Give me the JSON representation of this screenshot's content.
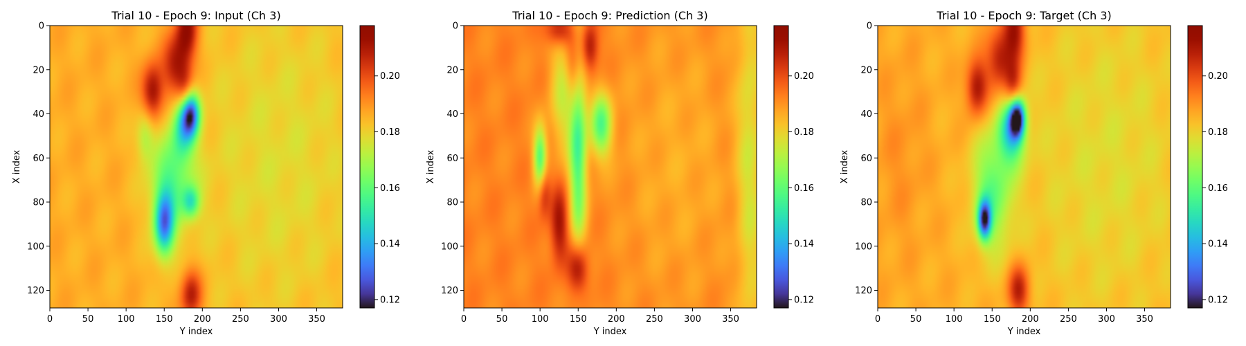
{
  "chart_data": [
    {
      "type": "heatmap",
      "title": "Trial 10 - Epoch 9: Input (Ch 3)",
      "xlabel": "Y index",
      "ylabel": "X index",
      "xlim": [
        0,
        384
      ],
      "ylim": [
        128,
        0
      ],
      "xticks": [
        "0",
        "50",
        "100",
        "150",
        "200",
        "250",
        "300",
        "350"
      ],
      "yticks": [
        "0",
        "20",
        "40",
        "60",
        "80",
        "100",
        "120"
      ],
      "colorbar": {
        "range": [
          0.117,
          0.218
        ],
        "ticks": [
          "0.12",
          "0.14",
          "0.16",
          "0.18",
          "0.20"
        ],
        "colormap": "turbo"
      },
      "background_value": 0.186,
      "features": [
        {
          "x": 180,
          "y": 2,
          "value": 0.214,
          "sx": 10,
          "sy": 10
        },
        {
          "x": 135,
          "y": 30,
          "value": 0.214,
          "sx": 10,
          "sy": 9
        },
        {
          "x": 165,
          "y": 18,
          "value": 0.21,
          "sx": 12,
          "sy": 10
        },
        {
          "x": 178,
          "y": 30,
          "value": 0.205,
          "sx": 8,
          "sy": 8
        },
        {
          "x": 185,
          "y": 40,
          "value": 0.135,
          "sx": 8,
          "sy": 7
        },
        {
          "x": 175,
          "y": 45,
          "value": 0.155,
          "sx": 10,
          "sy": 10
        },
        {
          "x": 150,
          "y": 90,
          "value": 0.138,
          "sx": 9,
          "sy": 10
        },
        {
          "x": 160,
          "y": 70,
          "value": 0.162,
          "sx": 20,
          "sy": 15
        },
        {
          "x": 125,
          "y": 50,
          "value": 0.172,
          "sx": 8,
          "sy": 8
        },
        {
          "x": 185,
          "y": 80,
          "value": 0.16,
          "sx": 8,
          "sy": 5
        },
        {
          "x": 185,
          "y": 122,
          "value": 0.21,
          "sx": 10,
          "sy": 8
        },
        {
          "x": 300,
          "y": 60,
          "value": 0.178,
          "sx": 90,
          "sy": 60
        }
      ]
    },
    {
      "type": "heatmap",
      "title": "Trial 10 - Epoch 9: Prediction (Ch 3)",
      "xlabel": "Y index",
      "ylabel": "X index",
      "xlim": [
        0,
        384
      ],
      "ylim": [
        128,
        0
      ],
      "xticks": [
        "0",
        "50",
        "100",
        "150",
        "200",
        "250",
        "300",
        "350"
      ],
      "yticks": [
        "0",
        "20",
        "40",
        "60",
        "80",
        "100",
        "120"
      ],
      "colorbar": {
        "range": [
          0.117,
          0.218
        ],
        "ticks": [
          "0.12",
          "0.14",
          "0.16",
          "0.18",
          "0.20"
        ],
        "colormap": "turbo"
      },
      "background_value": 0.192,
      "features": [
        {
          "x": 150,
          "y": 110,
          "value": 0.218,
          "sx": 9,
          "sy": 8
        },
        {
          "x": 125,
          "y": 90,
          "value": 0.212,
          "sx": 8,
          "sy": 12
        },
        {
          "x": 105,
          "y": 75,
          "value": 0.208,
          "sx": 6,
          "sy": 8
        },
        {
          "x": 100,
          "y": 60,
          "value": 0.158,
          "sx": 6,
          "sy": 10
        },
        {
          "x": 150,
          "y": 55,
          "value": 0.158,
          "sx": 8,
          "sy": 35
        },
        {
          "x": 180,
          "y": 45,
          "value": 0.16,
          "sx": 10,
          "sy": 10
        },
        {
          "x": 130,
          "y": 30,
          "value": 0.175,
          "sx": 12,
          "sy": 20
        },
        {
          "x": 145,
          "y": 20,
          "value": 0.212,
          "sx": 8,
          "sy": 12
        },
        {
          "x": 165,
          "y": 10,
          "value": 0.212,
          "sx": 8,
          "sy": 8
        },
        {
          "x": 125,
          "y": 2,
          "value": 0.212,
          "sx": 12,
          "sy": 5
        },
        {
          "x": 375,
          "y": 60,
          "value": 0.178,
          "sx": 12,
          "sy": 80
        },
        {
          "x": 280,
          "y": 60,
          "value": 0.186,
          "sx": 60,
          "sy": 50
        }
      ]
    },
    {
      "type": "heatmap",
      "title": "Trial 10 - Epoch 9: Target (Ch 3)",
      "xlabel": "Y index",
      "ylabel": "X index",
      "xlim": [
        0,
        384
      ],
      "ylim": [
        128,
        0
      ],
      "xticks": [
        "0",
        "50",
        "100",
        "150",
        "200",
        "250",
        "300",
        "350"
      ],
      "yticks": [
        "0",
        "20",
        "40",
        "60",
        "80",
        "100",
        "120"
      ],
      "colorbar": {
        "range": [
          0.117,
          0.218
        ],
        "ticks": [
          "0.12",
          "0.14",
          "0.16",
          "0.18",
          "0.20"
        ],
        "colormap": "turbo"
      },
      "background_value": 0.186,
      "features": [
        {
          "x": 180,
          "y": 2,
          "value": 0.212,
          "sx": 10,
          "sy": 10
        },
        {
          "x": 130,
          "y": 28,
          "value": 0.212,
          "sx": 10,
          "sy": 9
        },
        {
          "x": 160,
          "y": 15,
          "value": 0.21,
          "sx": 12,
          "sy": 10
        },
        {
          "x": 178,
          "y": 28,
          "value": 0.206,
          "sx": 8,
          "sy": 8
        },
        {
          "x": 183,
          "y": 42,
          "value": 0.125,
          "sx": 7,
          "sy": 6
        },
        {
          "x": 175,
          "y": 48,
          "value": 0.15,
          "sx": 12,
          "sy": 10
        },
        {
          "x": 140,
          "y": 88,
          "value": 0.13,
          "sx": 6,
          "sy": 6
        },
        {
          "x": 150,
          "y": 75,
          "value": 0.162,
          "sx": 18,
          "sy": 18
        },
        {
          "x": 185,
          "y": 120,
          "value": 0.21,
          "sx": 10,
          "sy": 8
        },
        {
          "x": 300,
          "y": 60,
          "value": 0.178,
          "sx": 90,
          "sy": 60
        },
        {
          "x": 30,
          "y": 60,
          "value": 0.19,
          "sx": 25,
          "sy": 30
        }
      ]
    }
  ]
}
